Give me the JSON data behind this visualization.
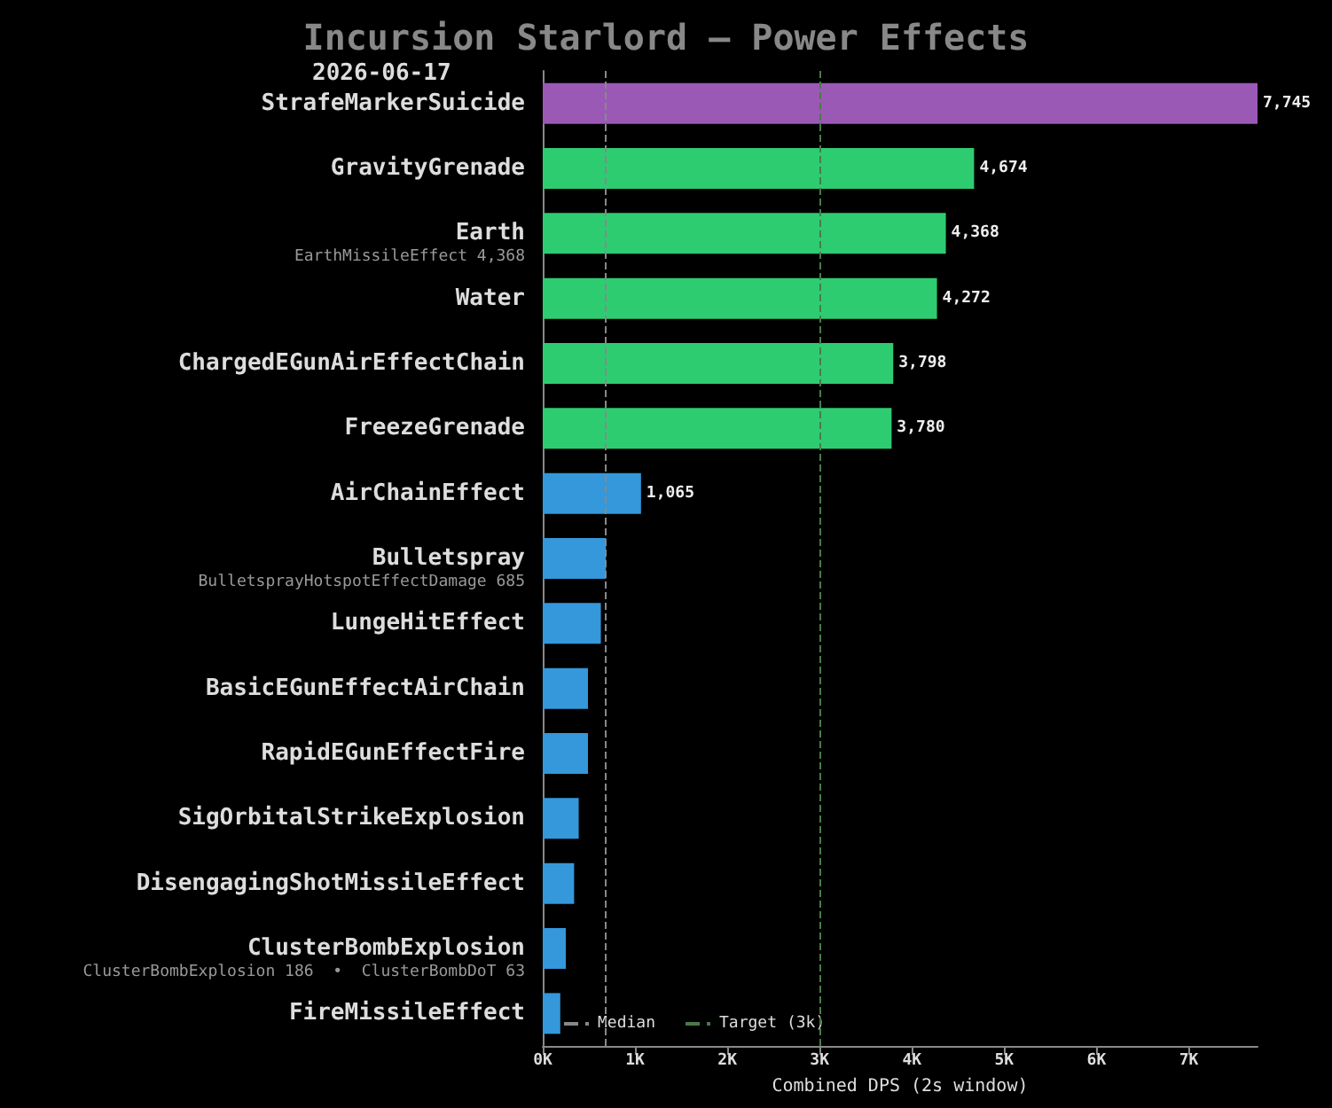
{
  "chart_data": {
    "type": "bar",
    "orientation": "horizontal",
    "title": "Incursion Starlord — Power Effects",
    "subtitle": "2026-06-17",
    "xlabel": "Combined DPS (2s window)",
    "categories": [
      "StrafeMarkerSuicide",
      "GravityGrenade",
      "Earth",
      "Water",
      "ChargedEGunAirEffectChain",
      "FreezeGrenade",
      "AirChainEffect",
      "Bulletspray",
      "LungeHitEffect",
      "BasicEGunEffectAirChain",
      "RapidEGunEffectFire",
      "SigOrbitalStrikeExplosion",
      "DisengagingShotMissileEffect",
      "ClusterBombExplosion",
      "FireMissileEffect"
    ],
    "values": [
      7745,
      4674,
      4368,
      4272,
      3798,
      3780,
      1065,
      685,
      630,
      490,
      490,
      390,
      340,
      250,
      190
    ],
    "colors": [
      "#9b59b6",
      "#2ecc71",
      "#2ecc71",
      "#2ecc71",
      "#2ecc71",
      "#2ecc71",
      "#3498db",
      "#3498db",
      "#3498db",
      "#3498db",
      "#3498db",
      "#3498db",
      "#3498db",
      "#3498db",
      "#3498db"
    ],
    "value_labels": [
      "7,745",
      "4,674",
      "4,368",
      "4,272",
      "3,798",
      "3,780",
      "1,065",
      null,
      null,
      null,
      null,
      null,
      null,
      null,
      null
    ],
    "xlim": [
      0,
      7745
    ],
    "xticks": [
      {
        "value": 0,
        "label": "0K"
      },
      {
        "value": 1000,
        "label": "1K"
      },
      {
        "value": 2000,
        "label": "2K"
      },
      {
        "value": 3000,
        "label": "3K"
      },
      {
        "value": 4000,
        "label": "4K"
      },
      {
        "value": 5000,
        "label": "5K"
      },
      {
        "value": 6000,
        "label": "6K"
      },
      {
        "value": 7000,
        "label": "7K"
      }
    ],
    "ref_lines": [
      {
        "axis": "x",
        "value": 685,
        "label": "Median",
        "color": "#888888",
        "line_style": "dashed"
      },
      {
        "axis": "x",
        "value": 3000,
        "label": "Target (3k)",
        "color": "#4a7a4a",
        "line_style": "dashed"
      }
    ],
    "annotations": [
      "EarthMissileEffect 4,368",
      "BulletsprayHotspotEffectDamage 685",
      "ClusterBombExplosion 186  •  ClusterBombDoT 63"
    ],
    "legend": "bottom left",
    "grid": false
  }
}
